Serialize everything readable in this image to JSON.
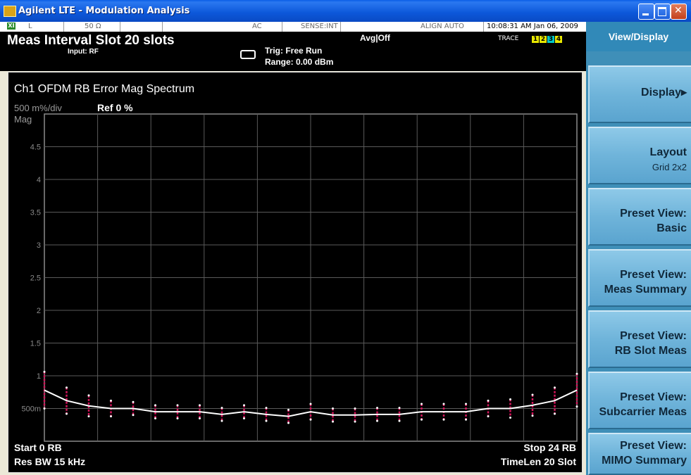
{
  "window": {
    "title": "Agilent LTE - Modulation Analysis"
  },
  "status": {
    "indicator": "XI",
    "coupling": "L",
    "impedance": "50 Ω",
    "ac": "AC",
    "sense": "SENSE:INT",
    "align": "ALIGN AUTO",
    "datetime": "10:08:31 AM Jan 06, 2009",
    "meas_interval": "Meas Interval Slot  20 slots",
    "input": "Input: RF",
    "avg": "Avg|Off",
    "trigger": "Trig: Free Run",
    "range": "Range: 0.00 dBm",
    "trace_label": "TRACE",
    "traces": [
      {
        "n": "1",
        "color": "#e8e800"
      },
      {
        "n": "2",
        "color": "#e8e800"
      },
      {
        "n": "3",
        "color": "#00c8c8"
      },
      {
        "n": "4",
        "color": "#e8e800"
      }
    ]
  },
  "softkeys": {
    "header": "View/Display",
    "items": [
      {
        "l1": "Display▸",
        "l2": ""
      },
      {
        "l1": "Layout",
        "l2": "Grid 2x2"
      },
      {
        "l1": "Preset View:",
        "l2": "Basic"
      },
      {
        "l1": "Preset View:",
        "l2": "Meas Summary"
      },
      {
        "l1": "Preset View:",
        "l2": "RB Slot Meas"
      },
      {
        "l1": "Preset View:",
        "l2": "Subcarrier Meas"
      },
      {
        "l1": "Preset View:",
        "l2": "MIMO Summary"
      }
    ]
  },
  "chart_data": {
    "type": "line",
    "title": "Ch1 OFDM RB Error Mag Spectrum",
    "scale_label": "500 m%/div",
    "ref_label": "Ref 0 %",
    "ylabel": "Mag",
    "yticks": [
      "4.5",
      "4",
      "3.5",
      "3",
      "2.5",
      "2",
      "1.5",
      "1",
      "500m"
    ],
    "ylim": [
      0,
      5
    ],
    "xlim": [
      0,
      24
    ],
    "grid": true,
    "x": [
      0,
      1,
      2,
      3,
      4,
      5,
      6,
      7,
      8,
      9,
      10,
      11,
      12,
      13,
      14,
      15,
      16,
      17,
      18,
      19,
      20,
      21,
      22,
      23,
      24
    ],
    "series": [
      {
        "values": [
          0.78,
          0.62,
          0.54,
          0.5,
          0.5,
          0.45,
          0.45,
          0.45,
          0.41,
          0.45,
          0.41,
          0.38,
          0.45,
          0.4,
          0.4,
          0.41,
          0.41,
          0.45,
          0.45,
          0.45,
          0.5,
          0.5,
          0.55,
          0.62,
          0.78
        ],
        "spread": [
          0.28,
          0.2,
          0.16,
          0.12,
          0.1,
          0.1,
          0.1,
          0.1,
          0.1,
          0.1,
          0.1,
          0.1,
          0.12,
          0.1,
          0.1,
          0.1,
          0.1,
          0.12,
          0.12,
          0.12,
          0.12,
          0.14,
          0.16,
          0.2,
          0.25
        ]
      }
    ],
    "start_label": "Start 0  RB",
    "stop_label": "Stop 24  RB",
    "res_bw": "Res BW 15 kHz",
    "time_len": "TimeLen 20  Slot"
  }
}
